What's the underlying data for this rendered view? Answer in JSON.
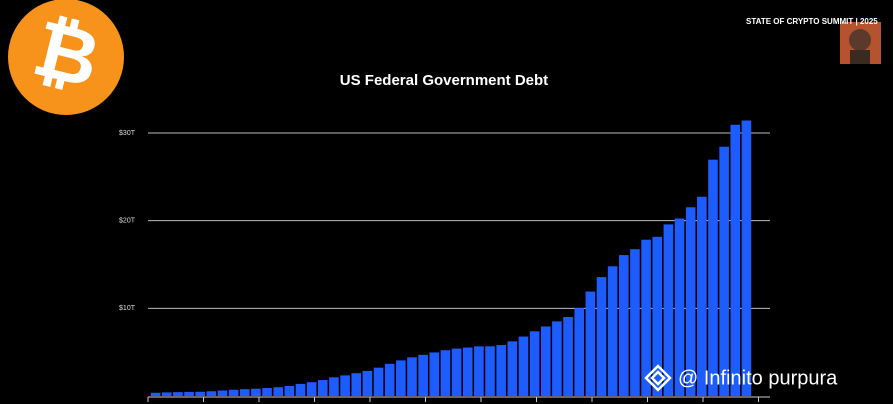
{
  "header": {
    "event": "STATE OF CRYPTO SUMMIT | 2025"
  },
  "watermark": "@ Infinito purpura",
  "chart_data": {
    "type": "bar",
    "title": "US Federal Government Debt",
    "color": "#1d5cff",
    "grid": true,
    "values": [
      0.37,
      0.41,
      0.44,
      0.47,
      0.48,
      0.54,
      0.63,
      0.71,
      0.78,
      0.83,
      0.91,
      1.0,
      1.14,
      1.38,
      1.57,
      1.82,
      2.13,
      2.35,
      2.6,
      2.86,
      3.23,
      3.67,
      4.06,
      4.41,
      4.69,
      4.97,
      5.22,
      5.41,
      5.53,
      5.66,
      5.67,
      5.81,
      6.23,
      6.78,
      7.38,
      7.93,
      8.51,
      9.01,
      10.02,
      11.91,
      13.56,
      14.79,
      16.07,
      16.74,
      17.82,
      18.15,
      19.57,
      20.24,
      21.52,
      22.72,
      26.95,
      28.43,
      30.93,
      31.42
    ],
    "ylim": [
      0,
      32
    ],
    "yticks": [
      {
        "value": 10,
        "label": "$10T"
      },
      {
        "value": 20,
        "label": "$20T"
      },
      {
        "value": 30,
        "label": "$30T"
      }
    ]
  }
}
